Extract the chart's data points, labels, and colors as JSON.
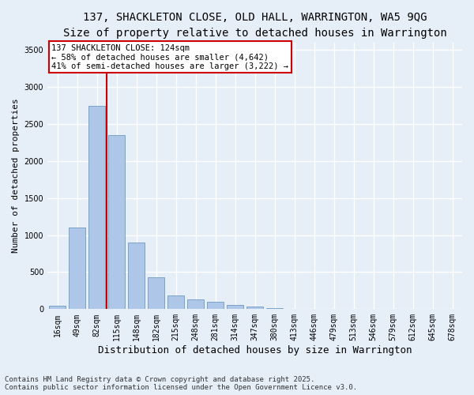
{
  "title_line1": "137, SHACKLETON CLOSE, OLD HALL, WARRINGTON, WA5 9QG",
  "title_line2": "Size of property relative to detached houses in Warrington",
  "xlabel": "Distribution of detached houses by size in Warrington",
  "ylabel": "Number of detached properties",
  "categories": [
    "16sqm",
    "49sqm",
    "82sqm",
    "115sqm",
    "148sqm",
    "182sqm",
    "215sqm",
    "248sqm",
    "281sqm",
    "314sqm",
    "347sqm",
    "380sqm",
    "413sqm",
    "446sqm",
    "479sqm",
    "513sqm",
    "546sqm",
    "579sqm",
    "612sqm",
    "645sqm",
    "678sqm"
  ],
  "values": [
    50,
    1100,
    2750,
    2350,
    900,
    430,
    185,
    130,
    95,
    60,
    40,
    15,
    8,
    3,
    2,
    1,
    1,
    0,
    0,
    0,
    0
  ],
  "bar_color": "#aec6e8",
  "bar_edge_color": "#5b8db8",
  "background_color": "#e6eef8",
  "grid_color": "#ffffff",
  "vline_x_index": 2.5,
  "vline_color": "#cc0000",
  "annotation_text": "137 SHACKLETON CLOSE: 124sqm\n← 58% of detached houses are smaller (4,642)\n41% of semi-detached houses are larger (3,222) →",
  "annotation_box_color": "#ffffff",
  "annotation_edge_color": "#cc0000",
  "footer_line1": "Contains HM Land Registry data © Crown copyright and database right 2025.",
  "footer_line2": "Contains public sector information licensed under the Open Government Licence v3.0.",
  "ylim": [
    0,
    3600
  ],
  "yticks": [
    0,
    500,
    1000,
    1500,
    2000,
    2500,
    3000,
    3500
  ],
  "title_fontsize": 10,
  "subtitle_fontsize": 9,
  "tick_fontsize": 7,
  "ylabel_fontsize": 8,
  "xlabel_fontsize": 9,
  "footer_fontsize": 6.5,
  "annotation_fontsize": 7.5
}
